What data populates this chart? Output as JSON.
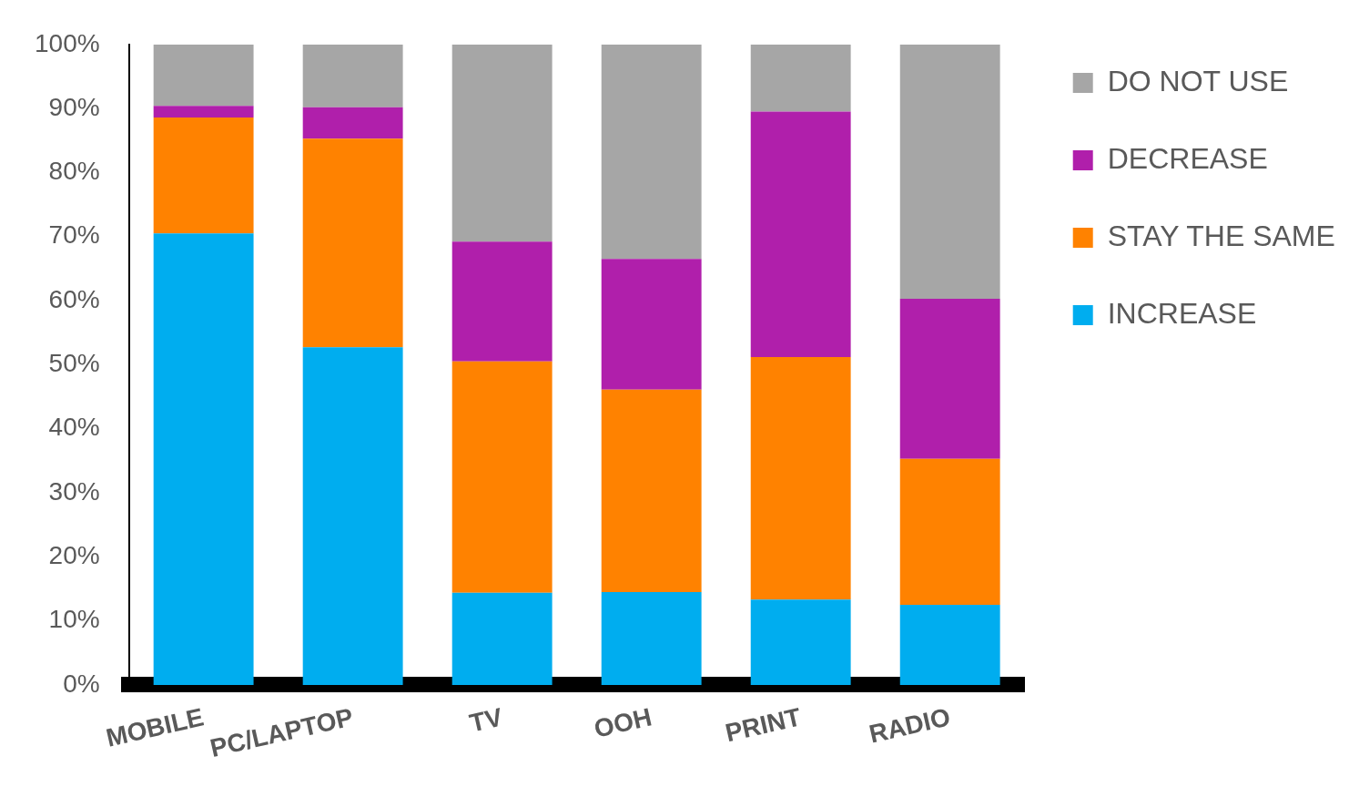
{
  "chart_data": {
    "type": "bar",
    "stacked": true,
    "categories": [
      "MOBILE",
      "PC/LAPTOP",
      "TV",
      "OOH",
      "PRINT",
      "RADIO"
    ],
    "series": [
      {
        "name": "INCREASE",
        "color": "#00adef",
        "values": [
          70.5,
          52.7,
          14.4,
          14.5,
          13.3,
          12.5
        ]
      },
      {
        "name": "STAY THE SAME",
        "color": "#ff8200",
        "values": [
          18.1,
          32.6,
          36.1,
          31.6,
          37.9,
          22.8
        ]
      },
      {
        "name": "DECREASE",
        "color": "#b01fab",
        "values": [
          1.8,
          4.9,
          18.7,
          20.4,
          38.3,
          25.0
        ]
      },
      {
        "name": "DO NOT USE",
        "color": "#a6a6a6",
        "values": [
          9.6,
          9.8,
          30.8,
          33.5,
          10.5,
          39.7
        ]
      }
    ],
    "ylim": [
      0,
      100
    ],
    "yticks": [
      {
        "value": 0,
        "label": "0%"
      },
      {
        "value": 10,
        "label": "10%"
      },
      {
        "value": 20,
        "label": "20%"
      },
      {
        "value": 30,
        "label": "30%"
      },
      {
        "value": 40,
        "label": "40%"
      },
      {
        "value": 50,
        "label": "50%"
      },
      {
        "value": 60,
        "label": "60%"
      },
      {
        "value": 70,
        "label": "70%"
      },
      {
        "value": 80,
        "label": "80%"
      },
      {
        "value": 90,
        "label": "90%"
      },
      {
        "value": 100,
        "label": "100%"
      }
    ],
    "grid": false,
    "legend": "top right"
  }
}
